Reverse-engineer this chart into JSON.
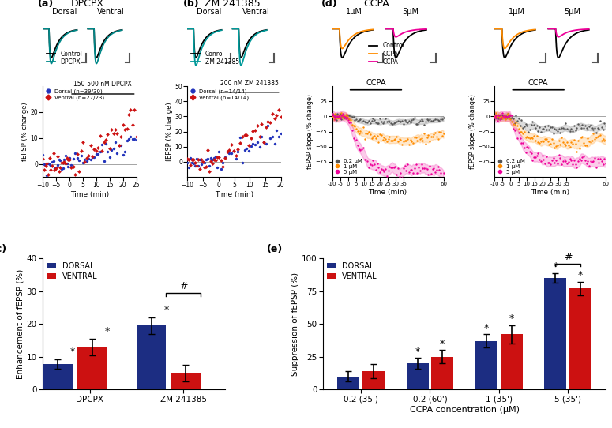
{
  "panel_c": {
    "ylabel": "Enhancement of fEPSP (%)",
    "xtick_labels": [
      "DPCPX",
      "ZM 241385"
    ],
    "dorsal_values": [
      7.8,
      19.5
    ],
    "ventral_values": [
      13.0,
      5.0
    ],
    "dorsal_errors": [
      1.5,
      2.5
    ],
    "ventral_errors": [
      2.5,
      2.5
    ],
    "ylim": [
      0,
      40
    ],
    "yticks": [
      0,
      10,
      20,
      30,
      40
    ],
    "dorsal_color": "#1c2d82",
    "ventral_color": "#cc1111",
    "legend_labels": [
      "DORSAL",
      "VENTRAL"
    ]
  },
  "panel_e": {
    "ylabel": "Suppression of fEPSP (%)",
    "xlabel": "CCPA concentration (μM)",
    "xtick_labels": [
      "0.2 (35')",
      "0.2 (60')",
      "1 (35')",
      "5 (35')"
    ],
    "dorsal_values": [
      10.0,
      20.0,
      37.0,
      85.0
    ],
    "ventral_values": [
      14.0,
      25.0,
      42.0,
      77.0
    ],
    "dorsal_errors": [
      4.0,
      4.0,
      5.0,
      3.5
    ],
    "ventral_errors": [
      5.5,
      5.0,
      7.0,
      5.0
    ],
    "ylim": [
      0,
      100
    ],
    "yticks": [
      0,
      25,
      50,
      75,
      100
    ],
    "dorsal_color": "#1c2d82",
    "ventral_color": "#cc1111",
    "legend_labels": [
      "DORSAL",
      "VENTRAL"
    ]
  },
  "timeseries_a": {
    "drug_label": "150-500 nM DPCPX",
    "xlabel": "Time (min)",
    "ylabel": "fEPSP (% change)",
    "xlim": [
      -10,
      25
    ],
    "ylim": [
      -5,
      30
    ],
    "yticks": [
      0,
      10,
      20
    ],
    "xticks": [
      -10,
      -5,
      0,
      5,
      10,
      15,
      20,
      25
    ],
    "dorsal_color": "#2233bb",
    "ventral_color": "#cc1111",
    "legend_dorsal": "Dorsal (n=39/30)",
    "legend_ventral": "Ventral (n=27/23)"
  },
  "timeseries_b": {
    "drug_label": "200 nM ZM 241385",
    "xlabel": "Time (min)",
    "ylabel": "fEPSP (% change)",
    "xlim": [
      -10,
      20
    ],
    "ylim": [
      -10,
      50
    ],
    "yticks": [
      0,
      10,
      20,
      30,
      40,
      50
    ],
    "xticks": [
      -10,
      -5,
      0,
      5,
      10,
      15,
      20
    ],
    "dorsal_color": "#2233bb",
    "ventral_color": "#cc1111",
    "legend_dorsal": "Dorsal (n=14/14)",
    "legend_ventral": "Ventral (n=14/14)"
  },
  "timeseries_d": {
    "ccpa_label": "CCPA",
    "xlabel": "Time (min)",
    "ylabel_dorsal": "fEPSP slope (% change)",
    "ylabel_ventral": "fEPSP slope (% change)",
    "xlim": [
      -10,
      60
    ],
    "ylim": [
      -100,
      50
    ],
    "yticks": [
      -75,
      -50,
      -25,
      0,
      25
    ],
    "xticks": [
      -10,
      -5,
      0,
      5,
      10,
      15,
      20,
      25,
      30,
      35,
      60
    ],
    "xticklabels": [
      "-10",
      "-5",
      "0",
      "5",
      "10",
      "15",
      "20",
      "25",
      "30",
      "35",
      "60"
    ],
    "gray_color": "#555555",
    "orange_color": "#ff8c00",
    "magenta_color": "#ee0099",
    "legend_02": "0.2 μM",
    "legend_1": "1 μM",
    "legend_5": "5 μM",
    "dorsal_final_02": -10,
    "dorsal_final_1": -40,
    "dorsal_final_5": -93,
    "ventral_final_02": -22,
    "ventral_final_1": -47,
    "ventral_final_5": -78
  },
  "traces": {
    "control_color": "#000000",
    "dpcpx_color": "#008888",
    "zm_color": "#009999",
    "ccpa1_color": "#ff8c00",
    "ccpa5_color": "#ee0099"
  }
}
